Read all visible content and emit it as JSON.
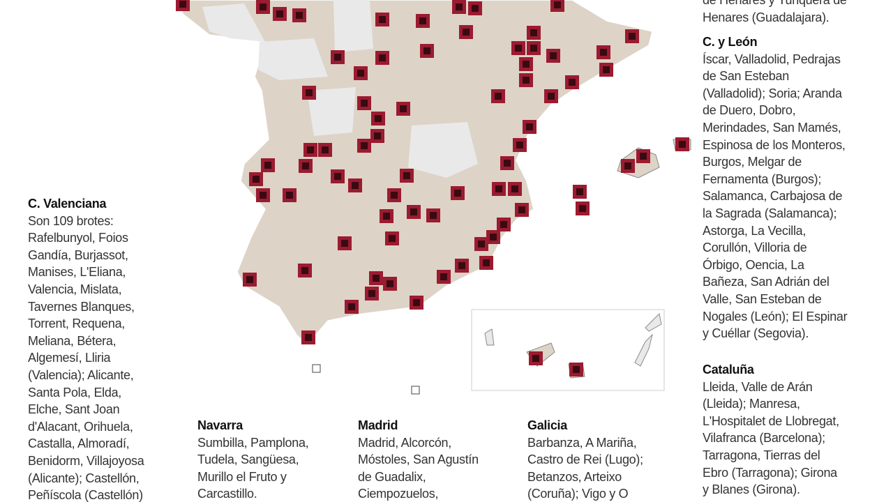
{
  "top_note": {
    "lines": [
      "de Henares y Yunquera de",
      "Henares (Guadalajara)."
    ]
  },
  "regions": [
    {
      "title": "C. Valenciana",
      "lines": [
        "Son 109 brotes:",
        "Rafelbunyol, Foios",
        "Gandía, Burjassot,",
        "Manises, L'Eliana,",
        "Valencia, Mislata,",
        "Tavernes Blanques,",
        "Torrent, Requena,",
        "Meliana, Bétera,",
        "Algemesí, Lliria",
        "(Valencia); Alicante,",
        "Santa Pola, Elda,",
        "Elche, Sant Joan",
        "d'Alacant, Orihuela,",
        "Castalla, Almoradí,",
        "Benidorm, Villajoyosa",
        "(Alicante); Castellón,",
        "Peñíscola (Castellón)"
      ]
    },
    {
      "title": "C. y León",
      "lines": [
        "Íscar, Valladolid, Pedrajas",
        "de San Esteban",
        "(Valladolid); Soria; Aranda",
        "de Duero, Dobro,",
        "Merindades, San Mamés,",
        "Espinosa de los Monteros,",
        "Burgos, Melgar de",
        "Fernamenta (Burgos);",
        "Salamanca, Carbajosa de",
        "la Sagrada (Salamanca);",
        "Astorga, La Vecilla,",
        "Corullón, Villoria de",
        "Órbigo, Oencia, La",
        "Bañeza, San Adrián del",
        "Valle, San Esteban de",
        "Nogales (León); El Espinar",
        "y Cuéllar (Segovia)."
      ]
    },
    {
      "title": "Cataluña",
      "lines": [
        "Lleida, Valle de Arán",
        "(Lleida); Manresa,",
        "L'Hospitalet de Llobregat,",
        "Vilafranca (Barcelona);",
        "Tarragona, Tierras del",
        "Ebro (Tarragona); Girona",
        "y Blanes (Girona)."
      ]
    },
    {
      "title": "Navarra",
      "lines": [
        "Sumbilla, Pamplona,",
        "Tudela, Sangüesa,",
        "Murillo el Fruto y",
        "Carcastillo."
      ]
    },
    {
      "title": "Madrid",
      "lines": [
        "Madrid, Alcorcón,",
        "Móstoles, San Agustín",
        "de Guadalix,",
        "Ciempozuelos,"
      ]
    },
    {
      "title": "Galicia",
      "lines": [
        "Barbanza, A Mariña,",
        "Castro de Rei (Lugo);",
        "Betanzos, Arteixo",
        "(Coruña); Vigo y O"
      ]
    }
  ]
}
